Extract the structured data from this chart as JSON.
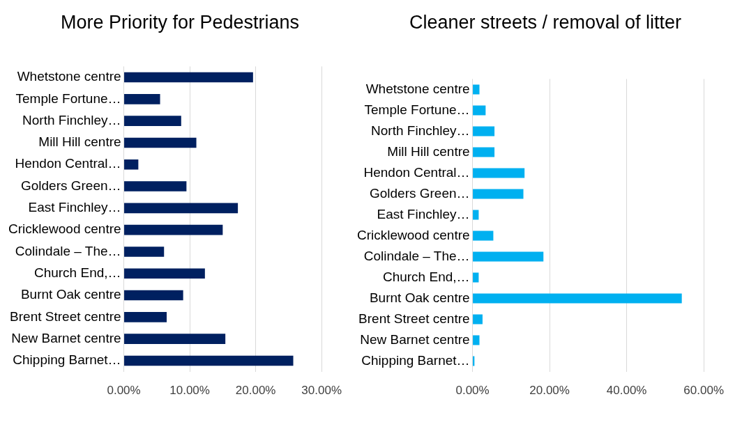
{
  "chart_data": [
    {
      "type": "bar",
      "orientation": "horizontal",
      "title": "More Priority for Pedestrians",
      "categories": [
        "Whetstone centre",
        "Temple Fortune…",
        "North Finchley…",
        "Mill Hill centre",
        "Hendon Central…",
        "Golders Green…",
        "East Finchley…",
        "Cricklewood centre",
        "Colindale – The…",
        "Church End,…",
        "Burnt Oak centre",
        "Brent Street centre",
        "New Barnet centre",
        "Chipping Barnet…"
      ],
      "values": [
        19.6,
        5.5,
        8.7,
        11.0,
        2.2,
        9.5,
        17.3,
        15.0,
        6.1,
        12.3,
        9.0,
        6.5,
        15.4,
        25.7
      ],
      "color": "#002060",
      "xlim": [
        0,
        30
      ],
      "xticks": [
        {
          "value": 0,
          "label": "0.00%"
        },
        {
          "value": 10,
          "label": "10.00%"
        },
        {
          "value": 20,
          "label": "20.00%"
        },
        {
          "value": 30,
          "label": "30.00%"
        }
      ],
      "grid": "x",
      "legend": false
    },
    {
      "type": "bar",
      "orientation": "horizontal",
      "title": "Cleaner streets / removal of litter",
      "categories": [
        "Whetstone centre",
        "Temple Fortune…",
        "North Finchley…",
        "Mill Hill centre",
        "Hendon Central…",
        "Golders Green…",
        "East Finchley…",
        "Cricklewood centre",
        "Colindale – The…",
        "Church End,…",
        "Burnt Oak centre",
        "Brent Street centre",
        "New Barnet centre",
        "Chipping Barnet…"
      ],
      "values": [
        1.8,
        3.4,
        5.7,
        5.7,
        13.5,
        13.2,
        1.6,
        5.4,
        18.4,
        1.6,
        54.3,
        2.6,
        1.8,
        0.5
      ],
      "color": "#00b0f0",
      "xlim": [
        0,
        60
      ],
      "xticks": [
        {
          "value": 0,
          "label": "0.00%"
        },
        {
          "value": 20,
          "label": "20.00%"
        },
        {
          "value": 40,
          "label": "40.00%"
        },
        {
          "value": 60,
          "label": "60.00%"
        }
      ],
      "grid": "x",
      "legend": false
    }
  ]
}
